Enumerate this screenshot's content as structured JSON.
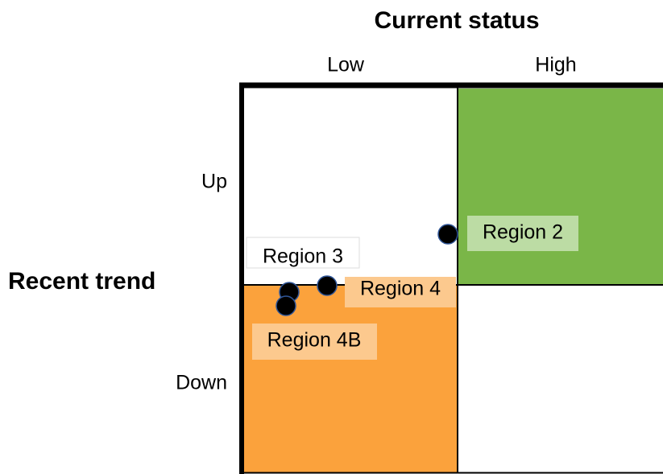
{
  "header": {
    "title": "Current status",
    "columns": [
      "Low",
      "High"
    ]
  },
  "side": {
    "title": "Recent trend",
    "rows": [
      "Up",
      "Down"
    ]
  },
  "points": [
    {
      "label": "Region 2"
    },
    {
      "label": "Region 3"
    },
    {
      "label": "Region 4"
    },
    {
      "label": "Region 4B"
    }
  ]
}
